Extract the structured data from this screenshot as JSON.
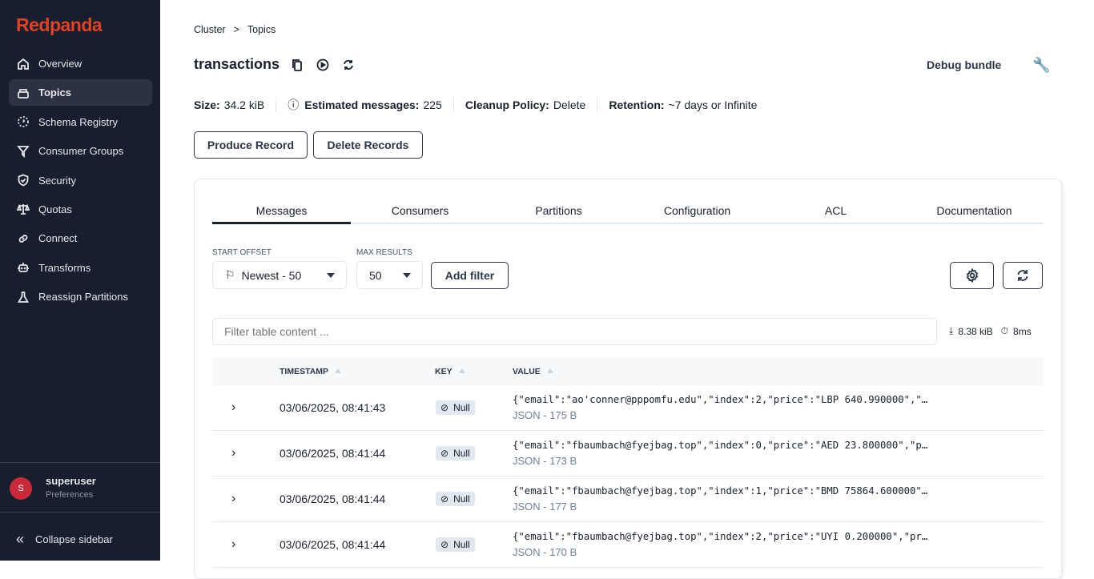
{
  "brand": {
    "name": "Redpanda",
    "color": "#e14226"
  },
  "sidebar": {
    "items": [
      {
        "label": "Overview",
        "icon": "home-icon"
      },
      {
        "label": "Topics",
        "icon": "topics-icon",
        "active": true
      },
      {
        "label": "Schema Registry",
        "icon": "schema-icon"
      },
      {
        "label": "Consumer Groups",
        "icon": "filter-icon"
      },
      {
        "label": "Security",
        "icon": "shield-icon"
      },
      {
        "label": "Quotas",
        "icon": "scale-icon"
      },
      {
        "label": "Connect",
        "icon": "link-icon"
      },
      {
        "label": "Transforms",
        "icon": "robot-icon"
      },
      {
        "label": "Reassign Partitions",
        "icon": "flask-icon"
      }
    ],
    "user": {
      "initial": "S",
      "name": "superuser",
      "sub": "Preferences"
    },
    "collapse": "Collapse sidebar"
  },
  "breadcrumb": [
    "Cluster",
    ">",
    "Topics"
  ],
  "topic": {
    "title": "transactions",
    "debug": "Debug bundle",
    "stats": [
      {
        "label": "Size:",
        "value": "34.2 kiB"
      },
      {
        "label": "Estimated messages:",
        "value": "225",
        "info": true
      },
      {
        "label": "Cleanup Policy:",
        "value": "Delete"
      },
      {
        "label": "Retention:",
        "value": "~7 days or Infinite"
      }
    ],
    "produce": "Produce Record",
    "delete": "Delete Records"
  },
  "tabs": [
    "Messages",
    "Consumers",
    "Partitions",
    "Configuration",
    "ACL",
    "Documentation"
  ],
  "controls": {
    "start_label": "START OFFSET",
    "start_value": "Newest - 50",
    "max_label": "MAX RESULTS",
    "max_value": "50",
    "add_filter": "Add filter",
    "filter_placeholder": "Filter table content ...",
    "size": "8.38 kiB",
    "time": "8ms"
  },
  "table": {
    "columns": [
      "TIMESTAMP",
      "KEY",
      "VALUE"
    ],
    "rows": [
      {
        "ts": "03/06/2025, 08:41:43",
        "key": "Null",
        "value": "{\"email\":\"ao'conner@pppomfu.edu\",\"index\":2,\"price\":\"LBP 640.990000\",\"…",
        "sub": "JSON - 175 B"
      },
      {
        "ts": "03/06/2025, 08:41:44",
        "key": "Null",
        "value": "{\"email\":\"fbaumbach@fyejbag.top\",\"index\":0,\"price\":\"AED 23.800000\",\"p…",
        "sub": "JSON - 173 B"
      },
      {
        "ts": "03/06/2025, 08:41:44",
        "key": "Null",
        "value": "{\"email\":\"fbaumbach@fyejbag.top\",\"index\":1,\"price\":\"BMD 75864.600000\"…",
        "sub": "JSON - 177 B"
      },
      {
        "ts": "03/06/2025, 08:41:44",
        "key": "Null",
        "value": "{\"email\":\"fbaumbach@fyejbag.top\",\"index\":2,\"price\":\"UYI 0.200000\",\"pr…",
        "sub": "JSON - 170 B"
      }
    ]
  }
}
